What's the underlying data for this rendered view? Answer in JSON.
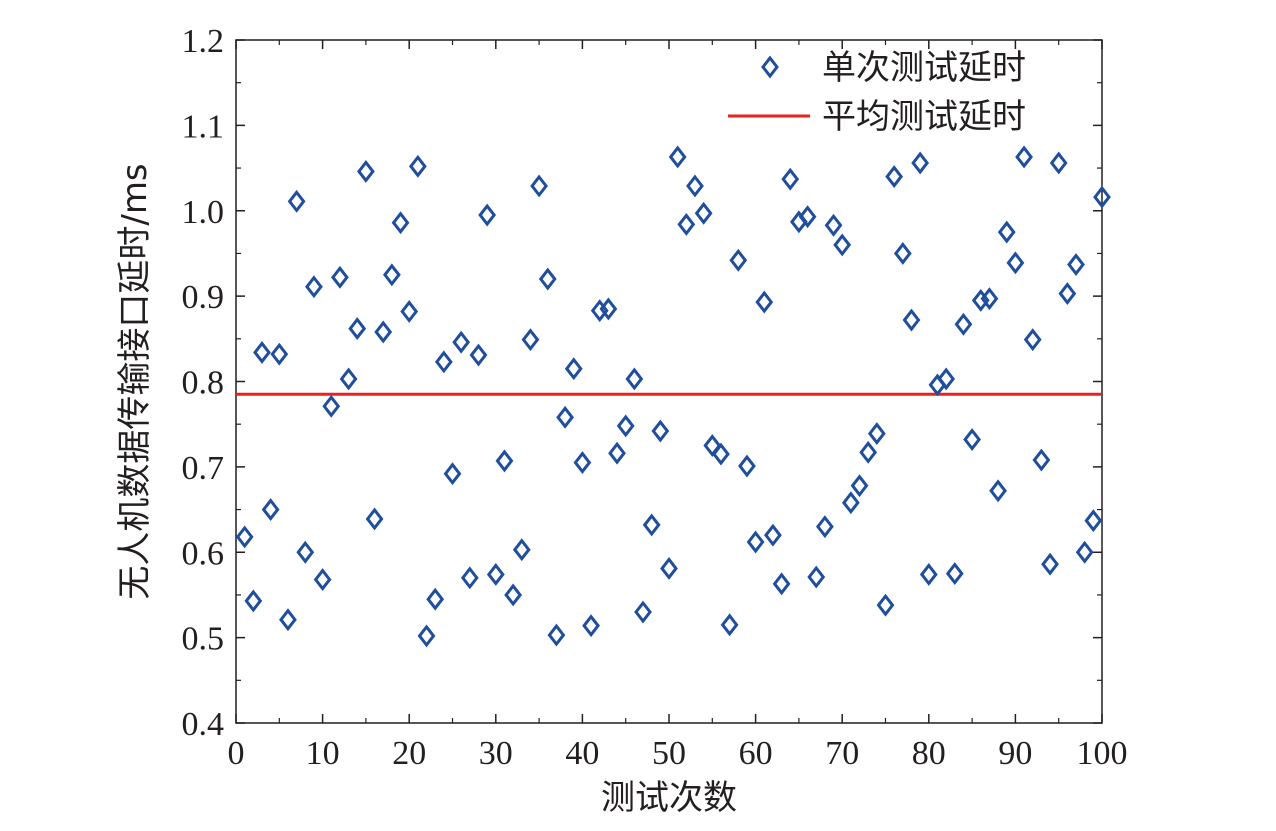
{
  "chart_data": {
    "type": "scatter",
    "xlabel": "测试次数",
    "ylabel": "无人机数据传输接口延时/ms",
    "xlim": [
      0,
      100
    ],
    "ylim": [
      0.4,
      1.2
    ],
    "xticks": [
      "0",
      "10",
      "20",
      "30",
      "40",
      "50",
      "60",
      "70",
      "80",
      "90",
      "100"
    ],
    "yticks": [
      "0.4",
      "0.5",
      "0.6",
      "0.7",
      "0.8",
      "0.9",
      "1.0",
      "1.1",
      "1.2"
    ],
    "grid": false,
    "legend_position": "top-right",
    "series": [
      {
        "name": "单次测试延时",
        "marker": "diamond",
        "color": "#1f4e9c",
        "x": [
          1,
          2,
          3,
          4,
          5,
          6,
          7,
          8,
          9,
          10,
          11,
          12,
          13,
          14,
          15,
          16,
          17,
          18,
          19,
          20,
          21,
          22,
          23,
          24,
          25,
          26,
          27,
          28,
          29,
          30,
          31,
          32,
          33,
          34,
          35,
          36,
          37,
          38,
          39,
          40,
          41,
          42,
          43,
          44,
          45,
          46,
          47,
          48,
          49,
          50,
          51,
          52,
          53,
          54,
          55,
          56,
          57,
          58,
          59,
          60,
          61,
          62,
          63,
          64,
          65,
          66,
          67,
          68,
          69,
          70,
          71,
          72,
          73,
          74,
          75,
          76,
          77,
          78,
          79,
          80,
          81,
          82,
          83,
          84,
          85,
          86,
          87,
          88,
          89,
          90,
          91,
          92,
          93,
          94,
          95,
          96,
          97,
          98,
          99,
          100
        ],
        "y": [
          0.618,
          0.543,
          0.834,
          0.65,
          0.832,
          0.521,
          1.011,
          0.6,
          0.911,
          0.568,
          0.771,
          0.922,
          0.803,
          0.862,
          1.046,
          0.639,
          0.858,
          0.925,
          0.986,
          0.882,
          1.052,
          0.502,
          0.545,
          0.823,
          0.692,
          0.846,
          0.57,
          0.831,
          0.995,
          0.574,
          0.707,
          0.55,
          0.603,
          0.849,
          1.029,
          0.92,
          0.503,
          0.758,
          0.815,
          0.705,
          0.514,
          0.883,
          0.885,
          0.716,
          0.748,
          0.803,
          0.53,
          0.632,
          0.742,
          0.581,
          1.063,
          0.984,
          1.029,
          0.997,
          0.725,
          0.715,
          0.515,
          0.942,
          0.701,
          0.612,
          0.893,
          0.62,
          0.563,
          1.037,
          0.987,
          0.993,
          0.571,
          0.63,
          0.983,
          0.96,
          0.658,
          0.678,
          0.717,
          0.739,
          0.538,
          1.04,
          0.95,
          0.872,
          1.056,
          0.574,
          0.796,
          0.803,
          0.575,
          0.867,
          0.732,
          0.895,
          0.897,
          0.672,
          0.975,
          0.939,
          1.063,
          0.849,
          0.708,
          0.586,
          1.056,
          0.903,
          0.937,
          0.6,
          0.637,
          1.016
        ]
      },
      {
        "name": "平均测试延时",
        "type": "hline",
        "color": "#e8231f",
        "y": 0.785
      }
    ]
  }
}
